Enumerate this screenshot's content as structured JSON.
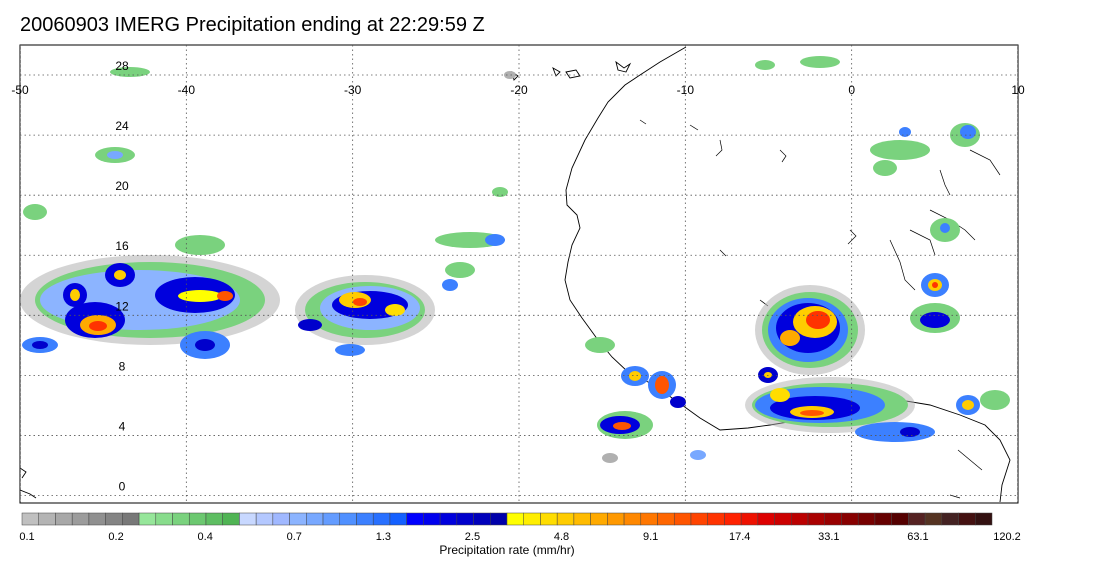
{
  "title": "20060903 IMERG Precipitation ending at 22:29:59 Z",
  "map": {
    "lon_range": [
      -50,
      10
    ],
    "lat_range": [
      -0.5,
      30
    ],
    "lon_ticks": [
      -50,
      -40,
      -30,
      -20,
      -10,
      0,
      10
    ],
    "lon_tick_labels": [
      "-50",
      "-40",
      "-30",
      "-20",
      "-10",
      "0",
      "10"
    ],
    "lat_ticks": [
      28,
      24,
      20,
      16,
      12,
      8,
      4,
      0
    ],
    "lat_tick_labels": [
      "28",
      "24",
      "20",
      "16",
      "12",
      "8",
      "4",
      "0"
    ],
    "grid": true
  },
  "colorbar": {
    "title": "Precipitation rate (mm/hr)",
    "colors": [
      "#c0c0c0",
      "#b4b4b4",
      "#a8a8a8",
      "#9c9c9c",
      "#909090",
      "#848484",
      "#787878",
      "#96e69a",
      "#88dc8c",
      "#7ad27e",
      "#6cc870",
      "#5ebe62",
      "#50b454",
      "#c8d8ff",
      "#b4c8ff",
      "#a0b8ff",
      "#8cb4ff",
      "#78a8ff",
      "#649cff",
      "#5090ff",
      "#3c80ff",
      "#2870ff",
      "#1460ff",
      "#0000ff",
      "#0000ee",
      "#0000dd",
      "#0000cc",
      "#0000bb",
      "#0000aa",
      "#ffff00",
      "#ffee00",
      "#ffdd00",
      "#ffcc00",
      "#ffbb00",
      "#ffaa00",
      "#ff9900",
      "#ff8800",
      "#ff7700",
      "#ff6600",
      "#ff5500",
      "#ff4400",
      "#ff3300",
      "#ff2200",
      "#ee1100",
      "#dd0000",
      "#cc0000",
      "#bb0000",
      "#aa0000",
      "#990000",
      "#880000",
      "#770000",
      "#660000",
      "#550000",
      "#552222",
      "#553322",
      "#442222",
      "#441111",
      "#331111"
    ],
    "labels": [
      "0.1",
      "0.2",
      "0.4",
      "0.7",
      "1.3",
      "2.5",
      "4.8",
      "9.1",
      "17.4",
      "33.1",
      "63.1",
      "120.2"
    ]
  }
}
